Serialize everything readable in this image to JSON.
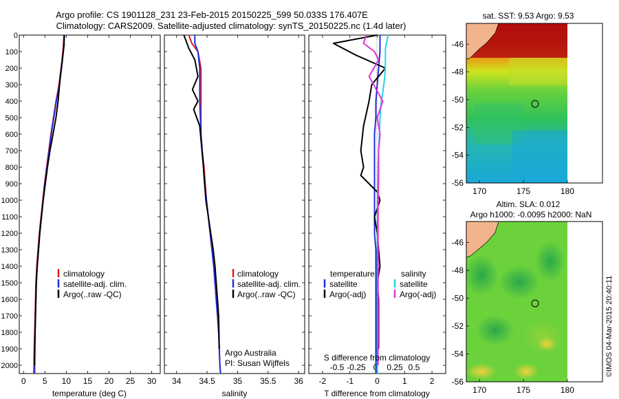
{
  "header": {
    "line1": "Argo profile: CS 1901128_231 23-Feb-2015 20150225_599 50.033S 176.407E",
    "line2": "Climatology: CARS2009. Satellite-adjusted climatology: synTS_20150225.nc (1.4d later)"
  },
  "credit": {
    "line1": "Argo Australia",
    "line2": "PI: Susan Wijffels"
  },
  "watermark": "©IMOS 04-Mar-2015 20:40:11",
  "colors": {
    "climatology": "#e41a1c",
    "satellite": "#1f2fe0",
    "argo": "#000000",
    "sal_satellite": "#22d3e6",
    "sal_argo": "#e033d0"
  },
  "chart_data": [
    {
      "type": "line",
      "panel": "temperature",
      "xlabel": "temperature (deg C)",
      "ylabel": "",
      "xlim": [
        -1,
        32
      ],
      "ylim": [
        2050,
        0
      ],
      "xticks": [
        0,
        5,
        10,
        15,
        20,
        25,
        30
      ],
      "yticks": [
        0,
        100,
        200,
        300,
        400,
        500,
        600,
        700,
        800,
        900,
        1000,
        1100,
        1200,
        1300,
        1400,
        1500,
        1600,
        1700,
        1800,
        1900,
        2000
      ],
      "legend": [
        "climatology",
        "satellite-adj. clim.",
        "Argo(..raw -QC)"
      ],
      "series": [
        {
          "name": "climatology",
          "color": "#e41a1c",
          "x": [
            9.5,
            9.2,
            8.8,
            8.3,
            7.6,
            7.0,
            6.4,
            5.9,
            5.4,
            4.9,
            4.5,
            4.1,
            3.7,
            3.4,
            3.1,
            2.9,
            2.8,
            2.7,
            2.6,
            2.5,
            2.4
          ],
          "y": [
            0,
            100,
            200,
            300,
            400,
            500,
            600,
            700,
            800,
            900,
            1000,
            1100,
            1200,
            1300,
            1400,
            1500,
            1600,
            1700,
            1800,
            1900,
            2050
          ]
        },
        {
          "name": "satellite-adj. clim.",
          "color": "#1f2fe0",
          "x": [
            9.6,
            9.3,
            8.9,
            8.4,
            7.7,
            7.1,
            6.5,
            6.0,
            5.5,
            5.0,
            4.6,
            4.2,
            3.8,
            3.5,
            3.2,
            3.0,
            2.9,
            2.8,
            2.7,
            2.6,
            2.6
          ],
          "y": [
            0,
            100,
            200,
            300,
            400,
            500,
            600,
            700,
            800,
            900,
            1000,
            1100,
            1200,
            1300,
            1400,
            1500,
            1600,
            1700,
            1800,
            1900,
            2050
          ]
        },
        {
          "name": "Argo(..raw -QC)",
          "color": "#000000",
          "x": [
            9.5,
            9.5,
            9.1,
            8.6,
            8.1,
            7.6,
            6.9,
            6.2,
            5.6,
            5.1,
            4.6,
            4.2,
            3.8,
            3.5,
            3.2,
            3.0,
            2.9,
            2.8,
            2.7,
            2.6
          ],
          "y": [
            0,
            60,
            150,
            250,
            400,
            500,
            600,
            700,
            800,
            900,
            1000,
            1100,
            1200,
            1300,
            1400,
            1500,
            1600,
            1700,
            1800,
            2000
          ]
        }
      ]
    },
    {
      "type": "line",
      "panel": "salinity",
      "xlabel": "salinity",
      "ylabel": "",
      "xlim": [
        33.8,
        36.1
      ],
      "ylim": [
        2050,
        0
      ],
      "xticks": [
        34,
        34.5,
        35,
        35.5,
        36
      ],
      "legend": [
        "climatology",
        "satellite-adj. clim.",
        "Argo(..raw -QC)"
      ],
      "series": [
        {
          "name": "climatology",
          "color": "#e41a1c",
          "x": [
            34.2,
            34.25,
            34.35,
            34.4,
            34.4,
            34.4,
            34.42,
            34.45,
            34.47,
            34.49,
            34.52,
            34.55,
            34.58,
            34.61,
            34.63,
            34.65,
            34.67,
            34.69,
            34.7,
            34.71,
            34.72
          ],
          "y": [
            0,
            50,
            100,
            200,
            400,
            600,
            700,
            800,
            900,
            1000,
            1100,
            1200,
            1300,
            1400,
            1500,
            1600,
            1700,
            1800,
            1900,
            2000,
            2050
          ]
        },
        {
          "name": "satellite-adj. clim.",
          "color": "#1f2fe0",
          "x": [
            34.3,
            34.3,
            34.35,
            34.38,
            34.38,
            34.4,
            34.42,
            34.44,
            34.46,
            34.49,
            34.52,
            34.55,
            34.58,
            34.61,
            34.63,
            34.65,
            34.67,
            34.69,
            34.7,
            34.71,
            34.72
          ],
          "y": [
            0,
            50,
            100,
            200,
            400,
            600,
            700,
            800,
            900,
            1000,
            1100,
            1200,
            1300,
            1400,
            1500,
            1600,
            1700,
            1800,
            1900,
            2000,
            2050
          ]
        },
        {
          "name": "Argo(..raw -QC)",
          "color": "#000000",
          "x": [
            34.12,
            34.2,
            34.3,
            34.35,
            34.26,
            34.35,
            34.28,
            34.38,
            34.44,
            34.46,
            34.48,
            34.52,
            34.56,
            34.6,
            34.63,
            34.65,
            34.67,
            34.69,
            34.7
          ],
          "y": [
            0,
            80,
            150,
            250,
            330,
            400,
            450,
            550,
            800,
            900,
            1000,
            1100,
            1200,
            1300,
            1400,
            1500,
            1600,
            1700,
            1900
          ]
        }
      ]
    },
    {
      "type": "line",
      "panel": "difference",
      "xlabel": "T difference from climatology",
      "top_label": "S difference from climatology",
      "xlim": [
        -2.5,
        2.5
      ],
      "ylim": [
        2050,
        0
      ],
      "xticks": [
        -2,
        -1,
        0,
        1,
        2
      ],
      "top_ticks": [
        "-0.5",
        "-0.25",
        "0",
        "0.25",
        "0.5"
      ],
      "legend_headers": [
        "temperature",
        "salinity"
      ],
      "legend": [
        "satellite",
        "Argo(-adj)",
        "satellite",
        "Argo(-adj)"
      ],
      "series": [
        {
          "name": "temperature satellite",
          "color": "#1f2fe0",
          "x": [
            0.1,
            0.1,
            0.05,
            0.0,
            -0.05,
            -0.05,
            -0.1,
            -0.1,
            -0.1,
            -0.1,
            -0.1,
            -0.1,
            -0.1,
            -0.05,
            -0.05,
            -0.05,
            -0.05,
            -0.05,
            -0.05,
            -0.05
          ],
          "y": [
            0,
            100,
            200,
            300,
            400,
            500,
            600,
            700,
            800,
            900,
            1000,
            1100,
            1200,
            1300,
            1400,
            1500,
            1600,
            1700,
            1800,
            2050
          ]
        },
        {
          "name": "temperature Argo(-adj)",
          "color": "#000000",
          "x": [
            0.0,
            -1.6,
            -0.8,
            0.3,
            -0.2,
            -0.3,
            -0.5,
            -0.6,
            -0.5,
            -0.6,
            0.0,
            0.1,
            -0.1,
            0.0,
            0.1,
            0.0,
            0.05,
            0.05,
            0.05,
            0.05
          ],
          "y": [
            0,
            50,
            120,
            200,
            300,
            400,
            550,
            700,
            800,
            850,
            950,
            1000,
            1100,
            1200,
            1400,
            1500,
            1600,
            1700,
            1800,
            1900
          ]
        },
        {
          "name": "salinity satellite",
          "color": "#22d3e6",
          "x": [
            0.4,
            0.3,
            0.3,
            0.28,
            0.2,
            0.15,
            0.1,
            0.08,
            0.05,
            0.03,
            0.02,
            0.01,
            0.01,
            0.01,
            0.0,
            0.0,
            0.0,
            0.0,
            0.0,
            0.0
          ],
          "y": [
            0,
            80,
            150,
            250,
            350,
            400,
            500,
            600,
            700,
            800,
            900,
            1000,
            1100,
            1200,
            1300,
            1400,
            1500,
            1600,
            1800,
            2050
          ]
        },
        {
          "name": "salinity Argo(-adj)",
          "color": "#e033d0",
          "x": [
            -0.4,
            -0.5,
            -0.1,
            0.05,
            -0.3,
            0.2,
            0.0,
            0.1,
            0.05,
            0.05,
            0.05,
            0.03,
            0.03,
            0.03,
            0.03,
            0.03,
            0.03,
            0.03,
            0.03,
            0.03
          ],
          "y": [
            0,
            50,
            100,
            150,
            250,
            400,
            500,
            600,
            700,
            800,
            900,
            1000,
            1100,
            1200,
            1300,
            1400,
            1500,
            1600,
            1800,
            2000
          ]
        }
      ]
    },
    {
      "type": "heatmap",
      "panel": "sst-map",
      "title": "sat. SST: 9.53 Argo: 9.53",
      "xlim": [
        168.5,
        184
      ],
      "ylim": [
        -56,
        -44.5
      ],
      "xticks": [
        170,
        175,
        180
      ],
      "yticks": [
        -46,
        -48,
        -50,
        -52,
        -54,
        -56
      ],
      "float_position": {
        "lon": 176.407,
        "lat": -50.033
      }
    },
    {
      "type": "heatmap",
      "panel": "sla-map",
      "title": "Altim. SLA: 0.012",
      "subtitle": "Argo h1000: -0.0095 h2000: NaN",
      "xlim": [
        168.5,
        184
      ],
      "ylim": [
        -56,
        -44.5
      ],
      "xticks": [
        170,
        175,
        180
      ],
      "yticks": [
        -46,
        -48,
        -50,
        -52,
        -54,
        -56
      ],
      "float_position": {
        "lon": 176.407,
        "lat": -50.033
      }
    }
  ]
}
